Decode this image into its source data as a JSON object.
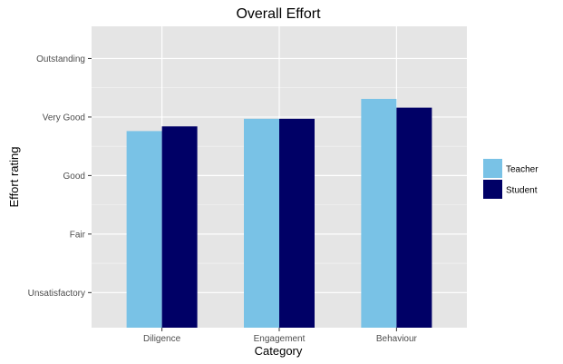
{
  "chart_data": {
    "type": "bar",
    "title": "Overall Effort",
    "xlabel": "Category",
    "ylabel": "Effort rating",
    "categories": [
      "Diligence",
      "Engagement",
      "Behaviour"
    ],
    "y_tick_labels": [
      "Unsatisfactory",
      "Fair",
      "Good",
      "Very Good",
      "Outstanding"
    ],
    "y_tick_values": [
      1,
      2,
      3,
      4,
      5
    ],
    "ylim": [
      0.4,
      5.55
    ],
    "series": [
      {
        "name": "Teacher",
        "color": "#79c2e6",
        "values": [
          3.76,
          3.97,
          4.31
        ]
      },
      {
        "name": "Student",
        "color": "#000066",
        "values": [
          3.84,
          3.97,
          4.16
        ]
      }
    ],
    "legend_position": "right",
    "grid": true,
    "panel_background": "#e5e5e5",
    "grid_color": "#ffffff"
  }
}
